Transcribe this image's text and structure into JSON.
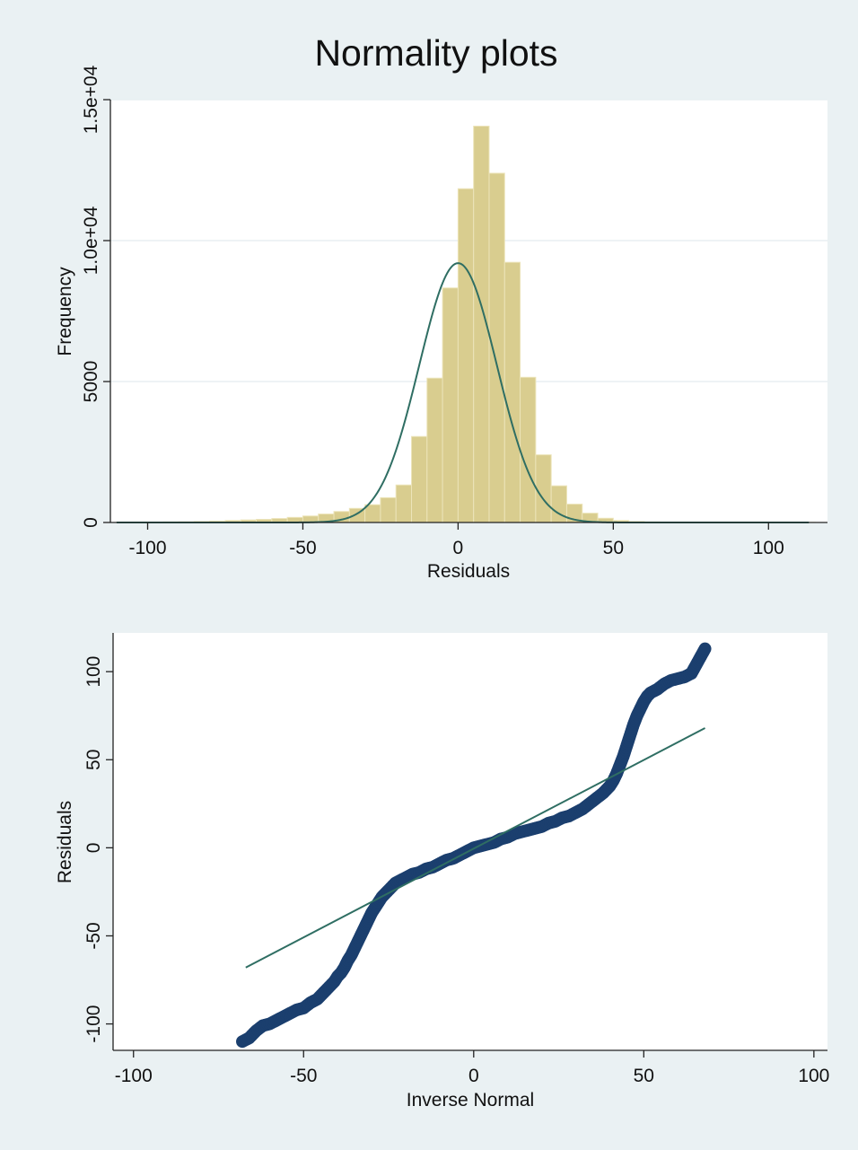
{
  "title": "Normality plots",
  "colors": {
    "background": "#eaf1f3",
    "plot_area": "#ffffff",
    "gridline": "#e8eff2",
    "bar_fill": "#d9cd8f",
    "bar_stroke": "#ece4b9",
    "fit_line": "#2f6e63",
    "marker": "#1b3f6e",
    "axis": "#222222",
    "title_text": "#1a2a45"
  },
  "chart_data": [
    {
      "type": "histogram",
      "xlabel": "Residuals",
      "ylabel": "Frequency",
      "xlim": [
        -112,
        119
      ],
      "ylim": [
        0,
        15000
      ],
      "xticks": [
        -100,
        -50,
        0,
        50,
        100
      ],
      "yticks": [
        0,
        5000,
        10000,
        15000
      ],
      "ytick_labels": [
        "0",
        "5000",
        "1.0e+04",
        "1.5e+04"
      ],
      "grid": true,
      "bin_width": 5,
      "bins": [
        {
          "x0": -110,
          "x1": -105,
          "value": 10
        },
        {
          "x0": -105,
          "x1": -100,
          "value": 10
        },
        {
          "x0": -100,
          "x1": -95,
          "value": 15
        },
        {
          "x0": -95,
          "x1": -90,
          "value": 20
        },
        {
          "x0": -90,
          "x1": -85,
          "value": 25
        },
        {
          "x0": -85,
          "x1": -80,
          "value": 35
        },
        {
          "x0": -80,
          "x1": -75,
          "value": 50
        },
        {
          "x0": -75,
          "x1": -70,
          "value": 70
        },
        {
          "x0": -70,
          "x1": -65,
          "value": 90
        },
        {
          "x0": -65,
          "x1": -60,
          "value": 110
        },
        {
          "x0": -60,
          "x1": -55,
          "value": 140
        },
        {
          "x0": -55,
          "x1": -50,
          "value": 180
        },
        {
          "x0": -50,
          "x1": -45,
          "value": 230
        },
        {
          "x0": -45,
          "x1": -40,
          "value": 300
        },
        {
          "x0": -40,
          "x1": -35,
          "value": 390
        },
        {
          "x0": -35,
          "x1": -30,
          "value": 500
        },
        {
          "x0": -30,
          "x1": -25,
          "value": 630
        },
        {
          "x0": -25,
          "x1": -20,
          "value": 880
        },
        {
          "x0": -20,
          "x1": -15,
          "value": 1330
        },
        {
          "x0": -15,
          "x1": -10,
          "value": 3050
        },
        {
          "x0": -10,
          "x1": -5,
          "value": 5120
        },
        {
          "x0": -5,
          "x1": 0,
          "value": 8320
        },
        {
          "x0": 0,
          "x1": 5,
          "value": 11840
        },
        {
          "x0": 5,
          "x1": 10,
          "value": 14060
        },
        {
          "x0": 10,
          "x1": 15,
          "value": 12390
        },
        {
          "x0": 15,
          "x1": 20,
          "value": 9230
        },
        {
          "x0": 20,
          "x1": 25,
          "value": 5150
        },
        {
          "x0": 25,
          "x1": 30,
          "value": 2400
        },
        {
          "x0": 30,
          "x1": 35,
          "value": 1300
        },
        {
          "x0": 35,
          "x1": 40,
          "value": 650
        },
        {
          "x0": 40,
          "x1": 45,
          "value": 330
        },
        {
          "x0": 45,
          "x1": 50,
          "value": 150
        },
        {
          "x0": 50,
          "x1": 55,
          "value": 70
        },
        {
          "x0": 55,
          "x1": 60,
          "value": 35
        },
        {
          "x0": 60,
          "x1": 65,
          "value": 20
        },
        {
          "x0": 65,
          "x1": 70,
          "value": 15
        },
        {
          "x0": 70,
          "x1": 75,
          "value": 10
        },
        {
          "x0": 75,
          "x1": 80,
          "value": 10
        },
        {
          "x0": 80,
          "x1": 85,
          "value": 10
        },
        {
          "x0": 85,
          "x1": 90,
          "value": 8
        },
        {
          "x0": 90,
          "x1": 95,
          "value": 8
        },
        {
          "x0": 95,
          "x1": 100,
          "value": 6
        },
        {
          "x0": 100,
          "x1": 105,
          "value": 6
        },
        {
          "x0": 105,
          "x1": 110,
          "value": 5
        },
        {
          "x0": 110,
          "x1": 115,
          "value": 5
        }
      ],
      "normal_curve": {
        "mean": 0,
        "sd": 12.5,
        "peak": 9200,
        "x_range": [
          -110,
          113
        ]
      }
    },
    {
      "type": "scatter",
      "xlabel": "Inverse Normal",
      "ylabel": "Residuals",
      "xlim": [
        -106,
        104
      ],
      "ylim": [
        -115,
        122
      ],
      "xticks": [
        -100,
        -50,
        0,
        50,
        100
      ],
      "yticks": [
        -100,
        -50,
        0,
        50,
        100
      ],
      "grid": false,
      "points": [
        [
          -68,
          -110
        ],
        [
          -66,
          -108
        ],
        [
          -64,
          -104
        ],
        [
          -62,
          -101
        ],
        [
          -60,
          -100
        ],
        [
          -58,
          -98
        ],
        [
          -56,
          -96
        ],
        [
          -54,
          -94
        ],
        [
          -52,
          -92
        ],
        [
          -50,
          -91
        ],
        [
          -48,
          -88
        ],
        [
          -46,
          -86
        ],
        [
          -45,
          -84
        ],
        [
          -44,
          -82
        ],
        [
          -43,
          -80
        ],
        [
          -42,
          -78
        ],
        [
          -41,
          -76
        ],
        [
          -40,
          -73
        ],
        [
          -39,
          -71
        ],
        [
          -38,
          -68
        ],
        [
          -37,
          -64
        ],
        [
          -36,
          -61
        ],
        [
          -35,
          -57
        ],
        [
          -34,
          -53
        ],
        [
          -33,
          -49
        ],
        [
          -32,
          -45
        ],
        [
          -31,
          -41
        ],
        [
          -30,
          -37
        ],
        [
          -29,
          -34
        ],
        [
          -28,
          -31
        ],
        [
          -27,
          -28
        ],
        [
          -26,
          -26
        ],
        [
          -25,
          -24
        ],
        [
          -24,
          -22
        ],
        [
          -23,
          -20
        ],
        [
          -22,
          -19
        ],
        [
          -21,
          -18
        ],
        [
          -20,
          -17
        ],
        [
          -18,
          -15
        ],
        [
          -16,
          -14
        ],
        [
          -14,
          -12
        ],
        [
          -12,
          -11
        ],
        [
          -10,
          -9
        ],
        [
          -8,
          -7
        ],
        [
          -6,
          -6
        ],
        [
          -4,
          -4
        ],
        [
          -2,
          -2
        ],
        [
          0,
          0
        ],
        [
          2,
          1
        ],
        [
          4,
          2
        ],
        [
          6,
          3
        ],
        [
          8,
          5
        ],
        [
          10,
          6
        ],
        [
          12,
          8
        ],
        [
          14,
          9
        ],
        [
          16,
          10
        ],
        [
          18,
          11
        ],
        [
          20,
          12
        ],
        [
          22,
          14
        ],
        [
          24,
          15
        ],
        [
          26,
          17
        ],
        [
          28,
          18
        ],
        [
          30,
          20
        ],
        [
          32,
          22
        ],
        [
          34,
          25
        ],
        [
          36,
          28
        ],
        [
          38,
          31
        ],
        [
          39,
          33
        ],
        [
          40,
          35
        ],
        [
          41,
          38
        ],
        [
          42,
          42
        ],
        [
          43,
          47
        ],
        [
          44,
          52
        ],
        [
          45,
          58
        ],
        [
          46,
          64
        ],
        [
          47,
          70
        ],
        [
          48,
          75
        ],
        [
          49,
          79
        ],
        [
          50,
          83
        ],
        [
          51,
          86
        ],
        [
          52,
          88
        ],
        [
          54,
          90
        ],
        [
          56,
          93
        ],
        [
          58,
          95
        ],
        [
          60,
          96
        ],
        [
          62,
          97
        ],
        [
          64,
          99
        ],
        [
          66,
          106
        ],
        [
          68,
          113
        ]
      ],
      "reference_line": {
        "x": [
          -67,
          68
        ],
        "y": [
          -68,
          68
        ]
      }
    }
  ]
}
